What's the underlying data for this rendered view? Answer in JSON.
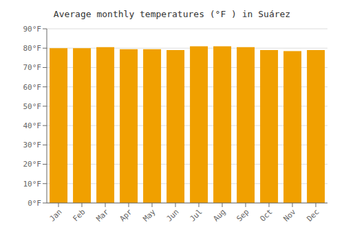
{
  "chart_data": {
    "type": "bar",
    "title": "Average monthly temperatures (°F ) in Suárez",
    "categories": [
      "Jan",
      "Feb",
      "Mar",
      "Apr",
      "May",
      "Jun",
      "Jul",
      "Aug",
      "Sep",
      "Oct",
      "Nov",
      "Dec"
    ],
    "values": [
      80,
      80,
      80.5,
      79.5,
      79.5,
      79,
      81,
      81,
      80.5,
      79,
      78.5,
      79
    ],
    "color": "#F0A000",
    "ylim": [
      0,
      90
    ],
    "yticks": [
      {
        "value": 0,
        "label": "0°F"
      },
      {
        "value": 10,
        "label": "10°F"
      },
      {
        "value": 20,
        "label": "20°F"
      },
      {
        "value": 30,
        "label": "30°F"
      },
      {
        "value": 40,
        "label": "40°F"
      },
      {
        "value": 50,
        "label": "50°F"
      },
      {
        "value": 60,
        "label": "60°F"
      },
      {
        "value": 70,
        "label": "70°F"
      },
      {
        "value": 80,
        "label": "80°F"
      },
      {
        "value": 90,
        "label": "90°F"
      }
    ],
    "grid": true
  }
}
